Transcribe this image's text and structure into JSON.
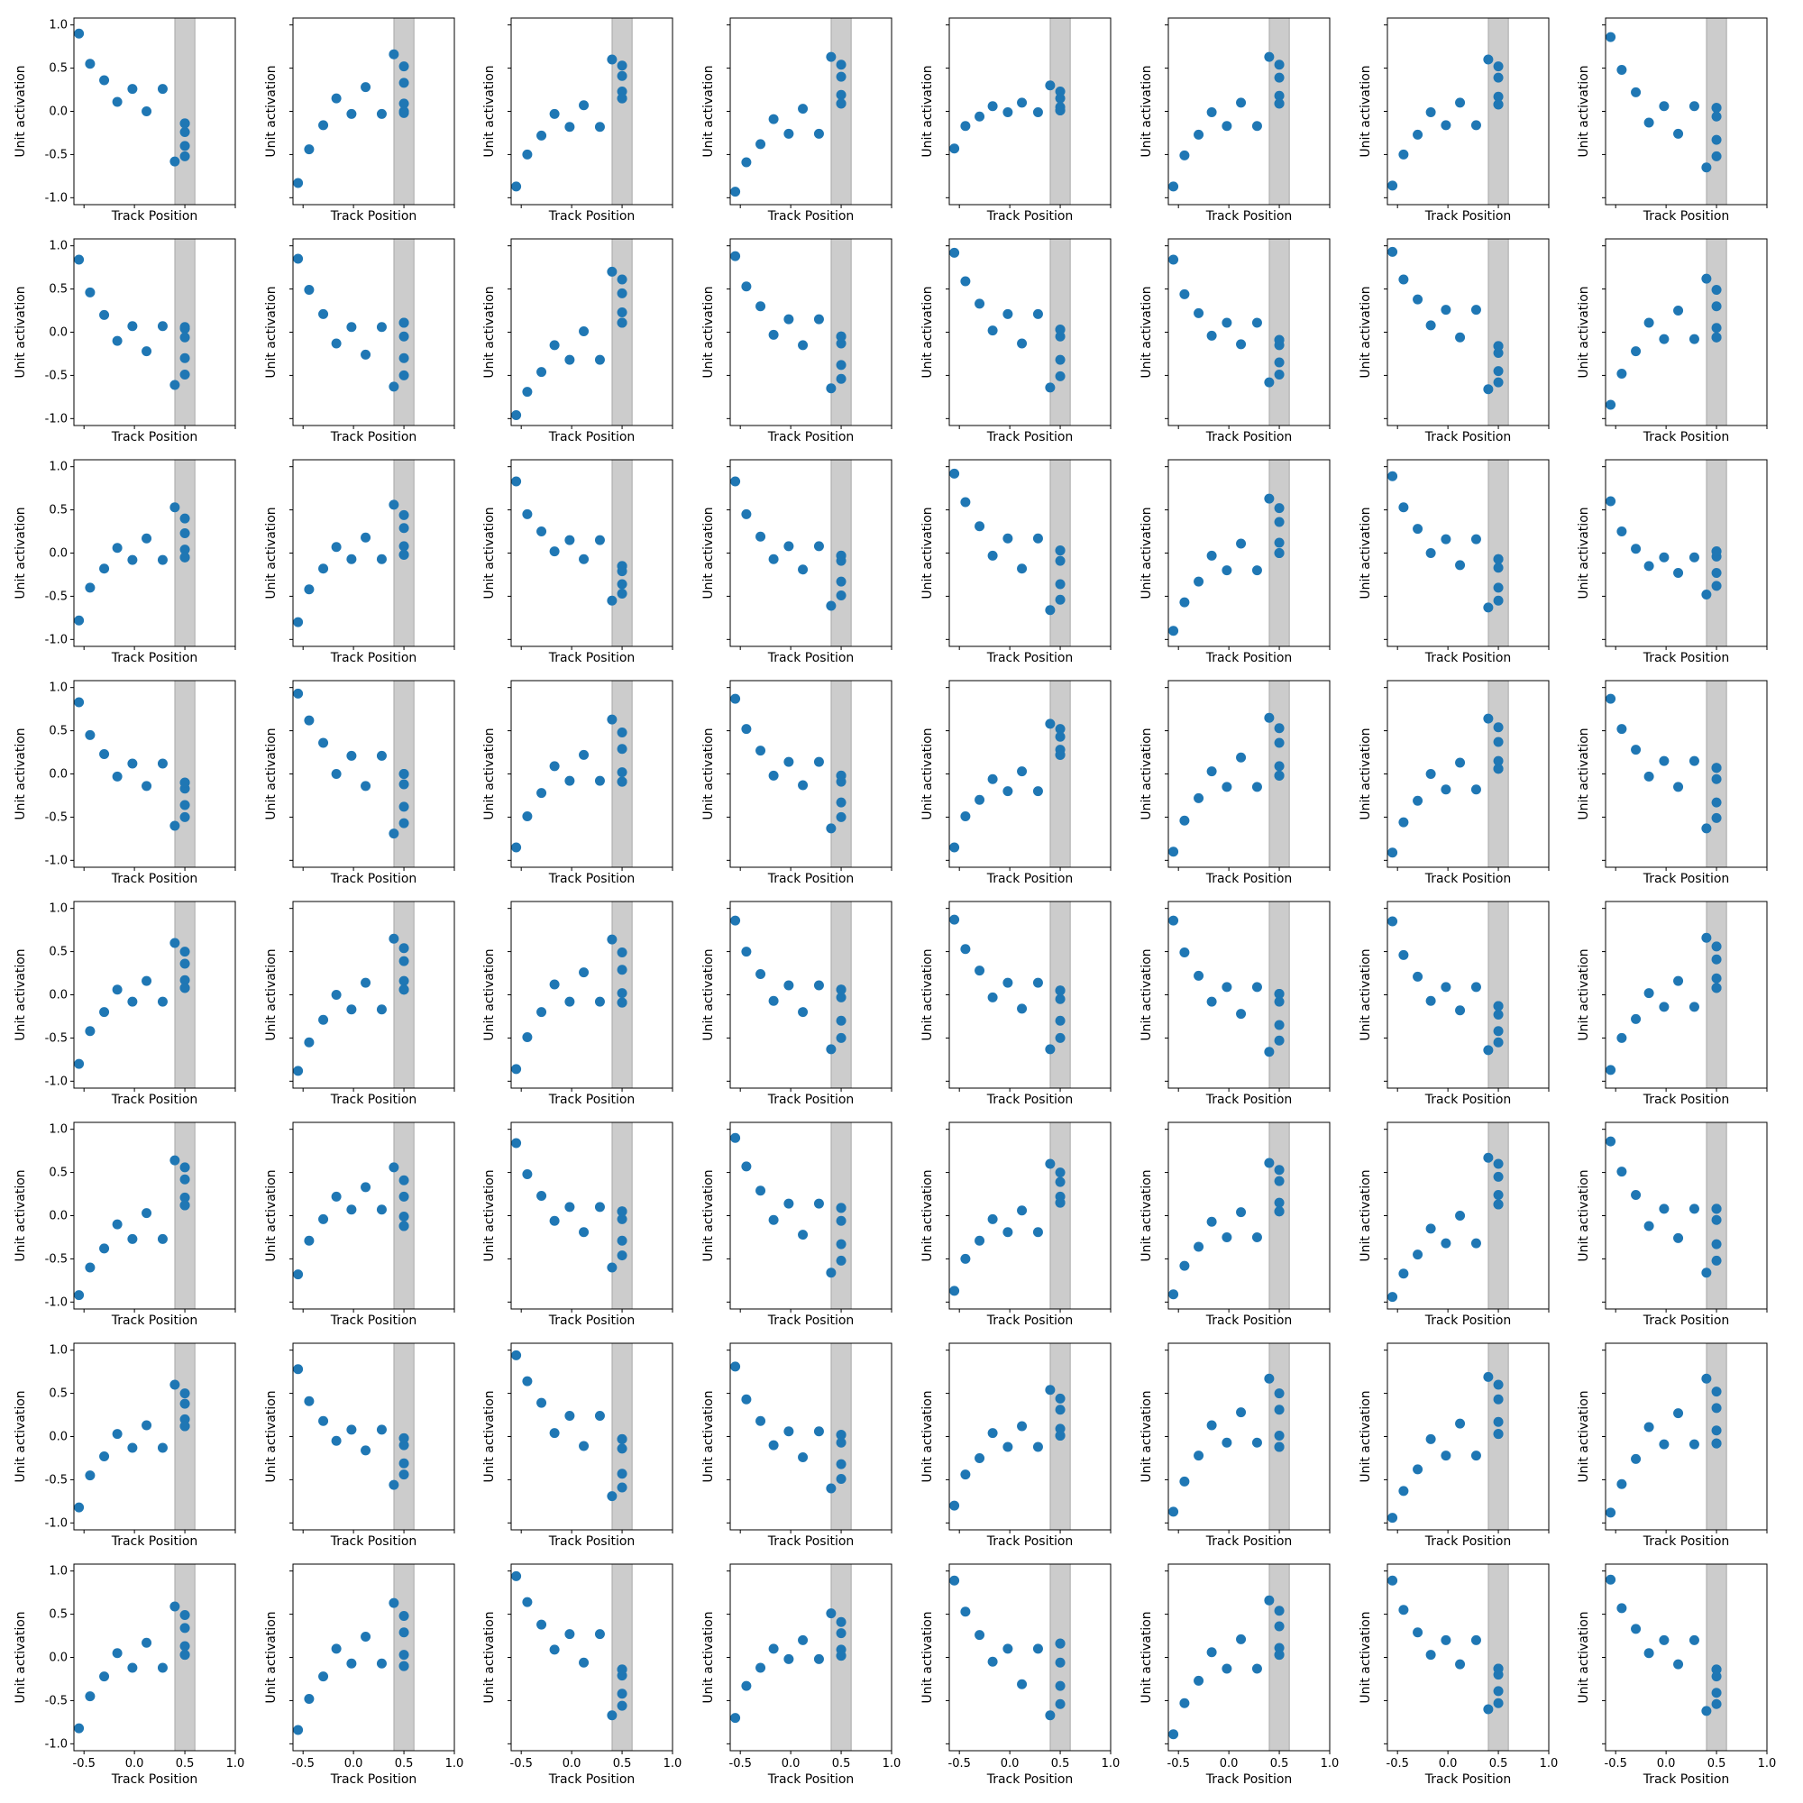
{
  "figure": {
    "rows": 8,
    "cols": 8,
    "xlabel": "Track Position",
    "ylabel": "Unit activation",
    "marker_color": "#1f77b4",
    "band_color": "#808080",
    "xlim": [
      -0.6,
      1.0
    ],
    "ylim": [
      -1.08,
      1.08
    ],
    "xticks": [
      -0.5,
      0.0,
      0.5,
      1.0
    ],
    "xtick_labels": [
      "-0.5",
      "0.0",
      "0.5",
      "1.0"
    ],
    "yticks": [
      -1.0,
      -0.5,
      0.0,
      0.5,
      1.0
    ],
    "ytick_labels": [
      "-1.0",
      "-0.5",
      "0.0",
      "0.5",
      "1.0"
    ],
    "shaded_band": [
      0.4,
      0.6
    ]
  },
  "chart_data": {
    "type": "scatter",
    "x": [
      -0.55,
      -0.44,
      -0.3,
      -0.17,
      -0.02,
      0.12,
      0.28,
      0.4,
      0.5,
      0.5,
      0.5,
      0.5,
      0.5
    ],
    "panels": [
      [
        0.9,
        0.55,
        0.36,
        0.11,
        0.26,
        0.0,
        0.26,
        -0.58,
        -0.52,
        -0.4,
        -0.24,
        -0.14,
        -0.14
      ],
      [
        -0.83,
        -0.44,
        -0.16,
        0.15,
        -0.03,
        0.28,
        -0.03,
        0.66,
        0.52,
        0.33,
        0.09,
        0.0,
        -0.02
      ],
      [
        -0.87,
        -0.5,
        -0.28,
        -0.03,
        -0.18,
        0.07,
        -0.18,
        0.6,
        0.53,
        0.41,
        0.23,
        0.15,
        0.15
      ],
      [
        -0.93,
        -0.59,
        -0.38,
        -0.09,
        -0.26,
        0.03,
        -0.26,
        0.63,
        0.54,
        0.4,
        0.19,
        0.09,
        0.09
      ],
      [
        -0.43,
        -0.17,
        -0.06,
        0.06,
        -0.01,
        0.1,
        -0.01,
        0.3,
        0.23,
        0.15,
        0.05,
        0.01,
        0.01
      ],
      [
        -0.87,
        -0.51,
        -0.27,
        -0.01,
        -0.17,
        0.1,
        -0.17,
        0.63,
        0.54,
        0.39,
        0.18,
        0.09,
        0.09
      ],
      [
        -0.86,
        -0.5,
        -0.27,
        -0.01,
        -0.16,
        0.1,
        -0.16,
        0.6,
        0.52,
        0.39,
        0.17,
        0.08,
        0.08
      ],
      [
        0.86,
        0.48,
        0.22,
        -0.13,
        0.06,
        -0.26,
        0.06,
        -0.65,
        -0.52,
        -0.33,
        -0.06,
        0.04,
        0.04
      ],
      [
        0.84,
        0.46,
        0.2,
        -0.1,
        0.07,
        -0.22,
        0.07,
        -0.61,
        -0.49,
        -0.3,
        -0.06,
        0.04,
        0.06
      ],
      [
        0.85,
        0.49,
        0.21,
        -0.13,
        0.06,
        -0.26,
        0.06,
        -0.63,
        -0.5,
        -0.3,
        -0.05,
        0.11,
        0.11
      ],
      [
        -0.96,
        -0.69,
        -0.46,
        -0.15,
        -0.32,
        0.01,
        -0.32,
        0.7,
        0.61,
        0.45,
        0.23,
        0.11,
        0.11
      ],
      [
        0.88,
        0.53,
        0.3,
        -0.03,
        0.15,
        -0.15,
        0.15,
        -0.65,
        -0.54,
        -0.38,
        -0.13,
        -0.05,
        -0.05
      ],
      [
        0.92,
        0.59,
        0.33,
        0.02,
        0.21,
        -0.13,
        0.21,
        -0.64,
        -0.51,
        -0.32,
        -0.05,
        0.03,
        0.03
      ],
      [
        0.84,
        0.44,
        0.22,
        -0.04,
        0.11,
        -0.14,
        0.11,
        -0.58,
        -0.49,
        -0.35,
        -0.15,
        -0.09,
        -0.09
      ],
      [
        0.93,
        0.61,
        0.38,
        0.08,
        0.26,
        -0.06,
        0.26,
        -0.66,
        -0.58,
        -0.45,
        -0.24,
        -0.16,
        -0.16
      ],
      [
        -0.84,
        -0.48,
        -0.22,
        0.11,
        -0.08,
        0.25,
        -0.08,
        0.62,
        0.49,
        0.3,
        0.05,
        -0.06,
        -0.06
      ],
      [
        -0.78,
        -0.4,
        -0.18,
        0.06,
        -0.08,
        0.17,
        -0.08,
        0.53,
        0.4,
        0.23,
        0.04,
        -0.05,
        -0.05
      ],
      [
        -0.8,
        -0.42,
        -0.18,
        0.07,
        -0.07,
        0.18,
        -0.07,
        0.56,
        0.44,
        0.29,
        0.08,
        -0.02,
        -0.02
      ],
      [
        0.83,
        0.45,
        0.25,
        0.02,
        0.15,
        -0.07,
        0.15,
        -0.55,
        -0.47,
        -0.36,
        -0.21,
        -0.15,
        -0.15
      ],
      [
        0.83,
        0.45,
        0.19,
        -0.07,
        0.08,
        -0.19,
        0.08,
        -0.61,
        -0.49,
        -0.33,
        -0.09,
        -0.03,
        -0.03
      ],
      [
        0.92,
        0.59,
        0.31,
        -0.03,
        0.17,
        -0.18,
        0.17,
        -0.66,
        -0.54,
        -0.36,
        -0.09,
        0.03,
        0.03
      ],
      [
        -0.9,
        -0.57,
        -0.33,
        -0.03,
        -0.2,
        0.11,
        -0.2,
        0.63,
        0.52,
        0.36,
        0.12,
        0.0,
        0.0
      ],
      [
        0.89,
        0.53,
        0.28,
        0.0,
        0.16,
        -0.14,
        0.16,
        -0.63,
        -0.55,
        -0.4,
        -0.17,
        -0.07,
        -0.07
      ],
      [
        0.6,
        0.25,
        0.05,
        -0.15,
        -0.05,
        -0.23,
        -0.05,
        -0.48,
        -0.38,
        -0.23,
        -0.04,
        0.02,
        0.02
      ],
      [
        0.83,
        0.45,
        0.23,
        -0.03,
        0.12,
        -0.14,
        0.12,
        -0.6,
        -0.5,
        -0.36,
        -0.17,
        -0.1,
        -0.1
      ],
      [
        0.93,
        0.62,
        0.36,
        0.0,
        0.21,
        -0.14,
        0.21,
        -0.69,
        -0.57,
        -0.38,
        -0.12,
        0.0,
        0.0
      ],
      [
        -0.85,
        -0.49,
        -0.22,
        0.09,
        -0.08,
        0.22,
        -0.08,
        0.63,
        0.48,
        0.29,
        0.02,
        -0.09,
        -0.09
      ],
      [
        0.87,
        0.52,
        0.27,
        -0.02,
        0.14,
        -0.13,
        0.14,
        -0.63,
        -0.5,
        -0.33,
        -0.09,
        -0.02,
        -0.02
      ],
      [
        -0.85,
        -0.49,
        -0.3,
        -0.06,
        -0.2,
        0.03,
        -0.2,
        0.58,
        0.52,
        0.43,
        0.28,
        0.22,
        0.22
      ],
      [
        -0.9,
        -0.54,
        -0.28,
        0.03,
        -0.15,
        0.19,
        -0.15,
        0.65,
        0.53,
        0.36,
        0.09,
        -0.02,
        -0.02
      ],
      [
        -0.91,
        -0.56,
        -0.31,
        0.0,
        -0.18,
        0.13,
        -0.18,
        0.64,
        0.54,
        0.37,
        0.15,
        0.06,
        0.06
      ],
      [
        0.87,
        0.52,
        0.28,
        -0.03,
        0.15,
        -0.15,
        0.15,
        -0.63,
        -0.51,
        -0.33,
        -0.06,
        0.07,
        0.07
      ],
      [
        -0.8,
        -0.42,
        -0.2,
        0.06,
        -0.08,
        0.16,
        -0.08,
        0.6,
        0.5,
        0.36,
        0.17,
        0.08,
        0.08
      ],
      [
        -0.88,
        -0.55,
        -0.29,
        0.0,
        -0.17,
        0.14,
        -0.17,
        0.65,
        0.54,
        0.39,
        0.16,
        0.06,
        0.06
      ],
      [
        -0.86,
        -0.49,
        -0.2,
        0.12,
        -0.08,
        0.26,
        -0.08,
        0.64,
        0.49,
        0.29,
        0.02,
        -0.09,
        -0.09
      ],
      [
        0.86,
        0.5,
        0.24,
        -0.07,
        0.11,
        -0.2,
        0.11,
        -0.63,
        -0.5,
        -0.3,
        -0.03,
        0.06,
        0.06
      ],
      [
        0.87,
        0.53,
        0.28,
        -0.03,
        0.14,
        -0.16,
        0.14,
        -0.63,
        -0.5,
        -0.3,
        -0.05,
        0.05,
        0.05
      ],
      [
        0.86,
        0.49,
        0.22,
        -0.08,
        0.09,
        -0.22,
        0.09,
        -0.66,
        -0.53,
        -0.35,
        -0.08,
        0.01,
        0.01
      ],
      [
        0.85,
        0.46,
        0.21,
        -0.07,
        0.09,
        -0.18,
        0.09,
        -0.64,
        -0.55,
        -0.42,
        -0.23,
        -0.13,
        -0.13
      ],
      [
        -0.87,
        -0.5,
        -0.28,
        0.02,
        -0.14,
        0.16,
        -0.14,
        0.66,
        0.56,
        0.41,
        0.19,
        0.08,
        0.08
      ],
      [
        -0.92,
        -0.6,
        -0.38,
        -0.1,
        -0.27,
        0.03,
        -0.27,
        0.64,
        0.56,
        0.42,
        0.21,
        0.12,
        0.12
      ],
      [
        -0.68,
        -0.29,
        -0.04,
        0.22,
        0.07,
        0.33,
        0.07,
        0.56,
        0.41,
        0.22,
        -0.01,
        -0.12,
        -0.12
      ],
      [
        0.84,
        0.48,
        0.23,
        -0.06,
        0.1,
        -0.19,
        0.1,
        -0.6,
        -0.46,
        -0.29,
        -0.04,
        0.05,
        0.05
      ],
      [
        0.9,
        0.57,
        0.29,
        -0.05,
        0.14,
        -0.22,
        0.14,
        -0.66,
        -0.52,
        -0.33,
        -0.06,
        0.09,
        0.09
      ],
      [
        -0.87,
        -0.5,
        -0.29,
        -0.04,
        -0.19,
        0.06,
        -0.19,
        0.6,
        0.5,
        0.39,
        0.22,
        0.15,
        0.15
      ],
      [
        -0.91,
        -0.58,
        -0.36,
        -0.07,
        -0.25,
        0.04,
        -0.25,
        0.61,
        0.53,
        0.4,
        0.15,
        0.05,
        0.05
      ],
      [
        -0.94,
        -0.67,
        -0.45,
        -0.15,
        -0.32,
        0.0,
        -0.32,
        0.67,
        0.6,
        0.45,
        0.24,
        0.13,
        0.13
      ],
      [
        0.86,
        0.51,
        0.24,
        -0.12,
        0.08,
        -0.26,
        0.08,
        -0.66,
        -0.52,
        -0.33,
        -0.05,
        0.08,
        0.08
      ],
      [
        -0.82,
        -0.45,
        -0.23,
        0.03,
        -0.13,
        0.13,
        -0.13,
        0.6,
        0.5,
        0.38,
        0.2,
        0.12,
        0.12
      ],
      [
        0.78,
        0.41,
        0.18,
        -0.05,
        0.08,
        -0.16,
        0.08,
        -0.56,
        -0.44,
        -0.31,
        -0.1,
        -0.02,
        -0.02
      ],
      [
        0.94,
        0.64,
        0.39,
        0.04,
        0.24,
        -0.11,
        0.24,
        -0.69,
        -0.59,
        -0.43,
        -0.14,
        -0.03,
        -0.03
      ],
      [
        0.81,
        0.43,
        0.18,
        -0.1,
        0.06,
        -0.24,
        0.06,
        -0.6,
        -0.49,
        -0.32,
        -0.07,
        0.02,
        0.02
      ],
      [
        -0.8,
        -0.44,
        -0.25,
        0.04,
        -0.12,
        0.12,
        -0.12,
        0.54,
        0.44,
        0.31,
        0.09,
        0.01,
        0.01
      ],
      [
        -0.87,
        -0.52,
        -0.22,
        0.13,
        -0.07,
        0.28,
        -0.07,
        0.67,
        0.5,
        0.31,
        0.01,
        -0.12,
        -0.12
      ],
      [
        -0.94,
        -0.63,
        -0.38,
        -0.03,
        -0.22,
        0.15,
        -0.22,
        0.69,
        0.6,
        0.43,
        0.17,
        0.03,
        0.03
      ],
      [
        -0.88,
        -0.55,
        -0.26,
        0.11,
        -0.09,
        0.27,
        -0.09,
        0.67,
        0.52,
        0.33,
        0.07,
        -0.08,
        -0.08
      ],
      [
        -0.82,
        -0.45,
        -0.22,
        0.05,
        -0.12,
        0.17,
        -0.12,
        0.59,
        0.49,
        0.34,
        0.13,
        0.03,
        0.03
      ],
      [
        -0.84,
        -0.48,
        -0.22,
        0.1,
        -0.07,
        0.24,
        -0.07,
        0.63,
        0.48,
        0.29,
        0.03,
        -0.1,
        -0.1
      ],
      [
        0.94,
        0.64,
        0.38,
        0.09,
        0.27,
        -0.06,
        0.27,
        -0.67,
        -0.56,
        -0.42,
        -0.21,
        -0.14,
        -0.14
      ],
      [
        -0.7,
        -0.33,
        -0.12,
        0.1,
        -0.02,
        0.2,
        -0.02,
        0.51,
        0.41,
        0.28,
        0.09,
        0.02,
        0.02
      ],
      [
        0.89,
        0.53,
        0.26,
        -0.05,
        0.1,
        -0.31,
        0.1,
        -0.67,
        -0.54,
        -0.33,
        -0.06,
        0.16,
        0.16
      ],
      [
        -0.89,
        -0.53,
        -0.27,
        0.06,
        -0.13,
        0.21,
        -0.13,
        0.66,
        0.54,
        0.36,
        0.11,
        0.03,
        0.03
      ],
      [
        0.89,
        0.55,
        0.29,
        0.03,
        0.2,
        -0.08,
        0.2,
        -0.6,
        -0.53,
        -0.39,
        -0.2,
        -0.13,
        -0.13
      ],
      [
        0.9,
        0.57,
        0.33,
        0.05,
        0.2,
        -0.08,
        0.2,
        -0.62,
        -0.54,
        -0.41,
        -0.22,
        -0.14,
        -0.14
      ]
    ]
  }
}
